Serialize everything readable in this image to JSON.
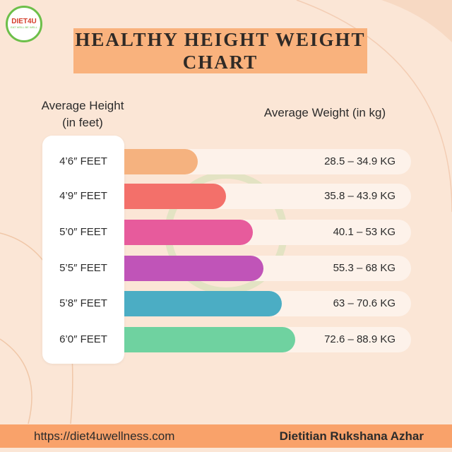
{
  "logo": {
    "name": "DIET4U",
    "tagline": "EAT WELL BE WELL"
  },
  "header": {
    "title": "HEALTHY HEIGHT WEIGHT CHART"
  },
  "columns": {
    "height": [
      "Average Height",
      "(in feet)"
    ],
    "weight": "Average Weight (in kg)"
  },
  "rows": [
    {
      "height": "4’6″ FEET",
      "weight": "28.5 – 34.9 KG"
    },
    {
      "height": "4’9″ FEET",
      "weight": "35.8 – 43.9 KG"
    },
    {
      "height": "5’0″ FEET",
      "weight": "40.1 – 53 KG"
    },
    {
      "height": "5’5″ FEET",
      "weight": "55.3 – 68 KG"
    },
    {
      "height": "5’8″ FEET",
      "weight": "63 – 70.6 KG"
    },
    {
      "height": "6’0″ FEET",
      "weight": "72.6 – 88.9 KG"
    }
  ],
  "footer": {
    "url": "https://diet4uwellness.com",
    "author": "Dietitian Rukshana Azhar"
  }
}
